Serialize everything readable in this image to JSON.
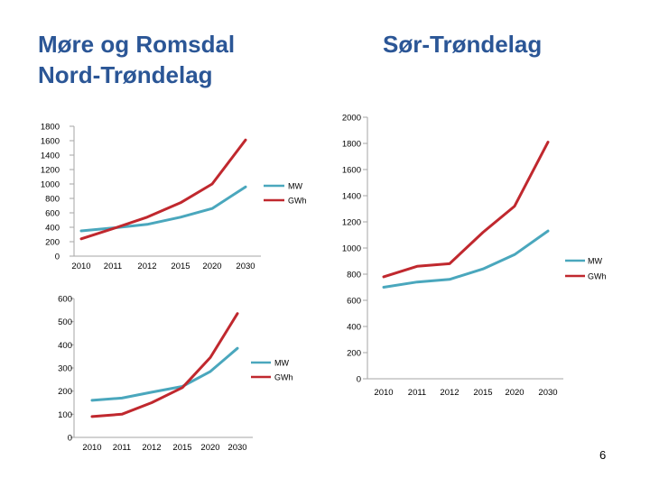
{
  "titles": {
    "left_line1": "Møre og Romsdal",
    "left_line2": "Nord-Trøndelag",
    "right": "Sør-Trøndelag"
  },
  "page_number": "6",
  "colors": {
    "mw": "#4aa7bd",
    "gwh": "#c0282e",
    "axis": "#a6a6a6"
  },
  "chart_data": [
    {
      "id": "chart-top-left",
      "type": "line",
      "categories": [
        "2010",
        "2011",
        "2012",
        "2015",
        "2020",
        "2030"
      ],
      "yticks": [
        "0",
        "200",
        "400",
        "600",
        "800",
        "1000",
        "1200",
        "1400",
        "1600",
        "1800"
      ],
      "ylim": [
        0,
        1800
      ],
      "series": [
        {
          "name": "MW",
          "values": [
            350,
            390,
            440,
            540,
            660,
            960
          ]
        },
        {
          "name": "GWh",
          "values": [
            240,
            380,
            540,
            740,
            1000,
            1610
          ]
        }
      ]
    },
    {
      "id": "chart-bottom-left",
      "type": "line",
      "categories": [
        "2010",
        "2011",
        "2012",
        "2015",
        "2020",
        "2030"
      ],
      "yticks": [
        "0",
        "100",
        "200",
        "300",
        "400",
        "500",
        "600"
      ],
      "ylim": [
        0,
        600
      ],
      "series": [
        {
          "name": "MW",
          "values": [
            160,
            170,
            195,
            220,
            285,
            385
          ]
        },
        {
          "name": "GWh",
          "values": [
            90,
            100,
            150,
            215,
            345,
            535
          ]
        }
      ]
    },
    {
      "id": "chart-right",
      "type": "line",
      "categories": [
        "2010",
        "2011",
        "2012",
        "2015",
        "2020",
        "2030"
      ],
      "yticks": [
        "0",
        "200",
        "400",
        "600",
        "800",
        "1000",
        "1200",
        "1400",
        "1600",
        "1800",
        "2000"
      ],
      "ylim": [
        0,
        2000
      ],
      "series": [
        {
          "name": "MW",
          "values": [
            700,
            740,
            760,
            840,
            950,
            1130
          ]
        },
        {
          "name": "GWh",
          "values": [
            780,
            860,
            880,
            1120,
            1320,
            1810
          ]
        }
      ]
    }
  ]
}
